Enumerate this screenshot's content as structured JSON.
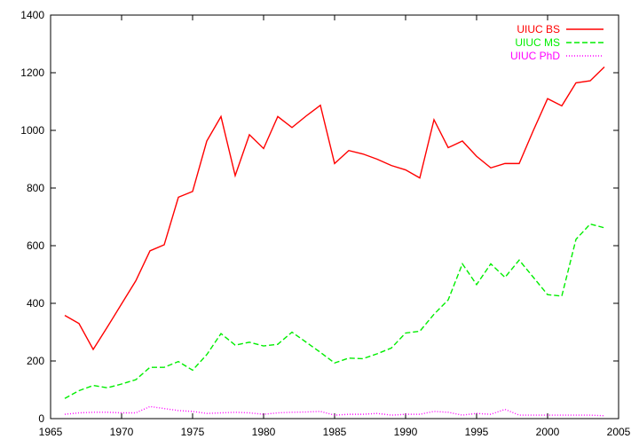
{
  "chart_data": {
    "type": "line",
    "title": "",
    "xlabel": "",
    "ylabel": "",
    "xlim": [
      1965,
      2005
    ],
    "ylim": [
      0,
      1400
    ],
    "x_ticks": [
      1965,
      1970,
      1975,
      1980,
      1985,
      1990,
      1995,
      2000,
      2005
    ],
    "y_ticks": [
      0,
      200,
      400,
      600,
      800,
      1000,
      1200,
      1400
    ],
    "grid": false,
    "legend_position": "top-right",
    "x": [
      1966,
      1967,
      1968,
      1969,
      1970,
      1971,
      1972,
      1973,
      1974,
      1975,
      1976,
      1977,
      1978,
      1979,
      1980,
      1981,
      1982,
      1983,
      1984,
      1985,
      1986,
      1987,
      1988,
      1989,
      1990,
      1991,
      1992,
      1993,
      1994,
      1995,
      1996,
      1997,
      1998,
      1999,
      2000,
      2001,
      2002,
      2003,
      2004
    ],
    "series": [
      {
        "name": "UIUC BS",
        "color": "#ff0000",
        "dash": "solid",
        "values": [
          358,
          330,
          240,
          318,
          398,
          478,
          582,
          603,
          768,
          788,
          963,
          1048,
          843,
          985,
          937,
          1048,
          1010,
          1050,
          1087,
          885,
          930,
          918,
          900,
          878,
          863,
          835,
          1037,
          940,
          963,
          910,
          870,
          885,
          885,
          1000,
          1110,
          1085,
          1165,
          1172,
          1220
        ]
      },
      {
        "name": "UIUC MS",
        "color": "#00ee00",
        "dash": "dashed",
        "values": [
          70,
          97,
          115,
          107,
          120,
          135,
          178,
          178,
          198,
          168,
          222,
          295,
          255,
          265,
          252,
          258,
          300,
          265,
          230,
          193,
          210,
          208,
          225,
          245,
          297,
          303,
          362,
          412,
          537,
          465,
          537,
          490,
          550,
          490,
          430,
          425,
          622,
          675,
          662
        ]
      },
      {
        "name": "UIUC PhD",
        "color": "#ff00ff",
        "dash": "dotted",
        "values": [
          15,
          20,
          22,
          22,
          20,
          20,
          42,
          35,
          28,
          25,
          18,
          20,
          22,
          20,
          15,
          20,
          22,
          23,
          25,
          12,
          15,
          15,
          18,
          12,
          15,
          15,
          25,
          22,
          12,
          18,
          15,
          32,
          12,
          12,
          12,
          12,
          12,
          12,
          10
        ]
      }
    ]
  }
}
